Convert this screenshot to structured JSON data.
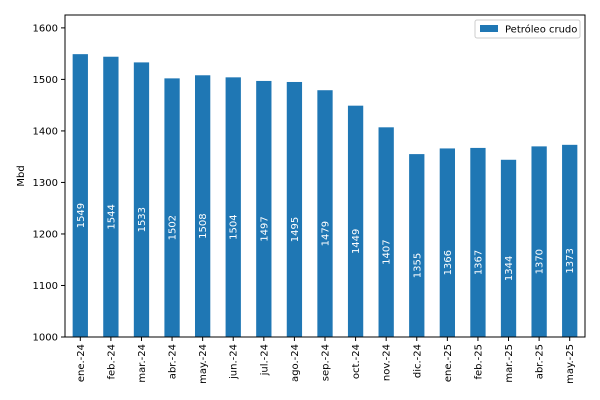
{
  "chart_data": {
    "type": "bar",
    "categories": [
      "ene.-24",
      "feb.-24",
      "mar.-24",
      "abr.-24",
      "may.-24",
      "jun.-24",
      "jul.-24",
      "ago.-24",
      "sep.-24",
      "oct.-24",
      "nov.-24",
      "dic.-24",
      "ene.-25",
      "feb.-25",
      "mar.-25",
      "abr.-25",
      "may.-25"
    ],
    "series": [
      {
        "name": "Petróleo crudo",
        "color": "#1f77b4",
        "values": [
          1549,
          1544,
          1533,
          1502,
          1508,
          1504,
          1497,
          1495,
          1479,
          1449,
          1407,
          1355,
          1366,
          1367,
          1344,
          1370,
          1373
        ]
      }
    ],
    "title": "",
    "xlabel": "",
    "ylabel": "Mbd",
    "ylim": [
      1000,
      1625
    ],
    "yticks": [
      1000,
      1100,
      1200,
      1300,
      1400,
      1500,
      1600
    ],
    "legend_position": "top-right",
    "grid": false,
    "data_labels": true
  }
}
